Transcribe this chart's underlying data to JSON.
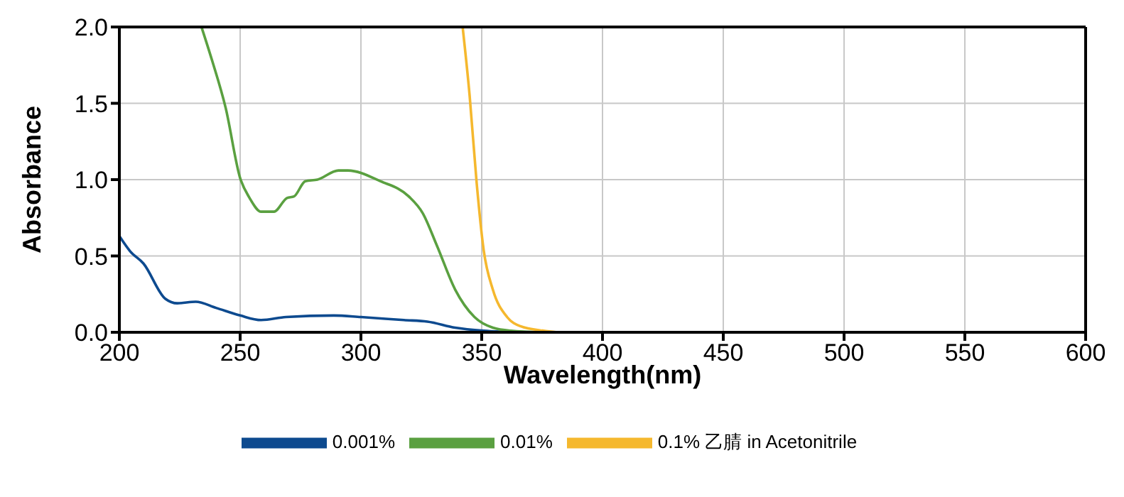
{
  "chart_data": {
    "type": "line",
    "xlabel": "Wavelength(nm)",
    "ylabel": "Absorbance",
    "xlim": [
      200,
      600
    ],
    "ylim": [
      0,
      2
    ],
    "xticks": [
      200,
      250,
      300,
      350,
      400,
      450,
      500,
      550,
      600
    ],
    "yticks": [
      {
        "value": 0,
        "label": "0.0"
      },
      0.5,
      {
        "value": 1,
        "label": "1.0"
      },
      1.5,
      {
        "value": 2,
        "label": "2.0"
      }
    ],
    "grid": true,
    "legend": "bottom",
    "marker": "none",
    "line_style": "solid",
    "series": [
      {
        "name": "0.001%",
        "color": "#0d4a8f",
        "x": [
          200,
          204.5,
          210,
          219,
          224,
          231.6,
          240,
          250,
          258.7,
          269,
          288.8,
          300,
          317.8,
          327.5,
          339,
          350.8,
          366
        ],
        "values": [
          0.63,
          0.53,
          0.45,
          0.22,
          0.19,
          0.2,
          0.16,
          0.11,
          0.08,
          0.1,
          0.11,
          0.1,
          0.08,
          0.07,
          0.03,
          0.01,
          0
        ]
      },
      {
        "name": "0.01%",
        "color": "#5aa040",
        "x": [
          234,
          238.4,
          244,
          250,
          253.9,
          258.7,
          264,
          269.4,
          272.3,
          277,
          282,
          290.7,
          294.6,
          308,
          319.8,
          325.6,
          331.4,
          339,
          347,
          354.6,
          362,
          376
        ],
        "values": [
          2,
          1.78,
          1.47,
          1.01,
          0.88,
          0.79,
          0.79,
          0.88,
          0.89,
          0.99,
          1,
          1.06,
          1.06,
          0.99,
          0.89,
          0.78,
          0.57,
          0.28,
          0.1,
          0.03,
          0.01,
          0
        ]
      },
      {
        "name": "0.1% 乙腈 in Acetonitrile",
        "color": "#f5b82e",
        "x": [
          342.1,
          345,
          347.9,
          350.8,
          354.6,
          360.5,
          366,
          375.6,
          381.4
        ],
        "values": [
          2,
          1.55,
          0.98,
          0.54,
          0.28,
          0.1,
          0.04,
          0.01,
          0
        ]
      }
    ]
  }
}
